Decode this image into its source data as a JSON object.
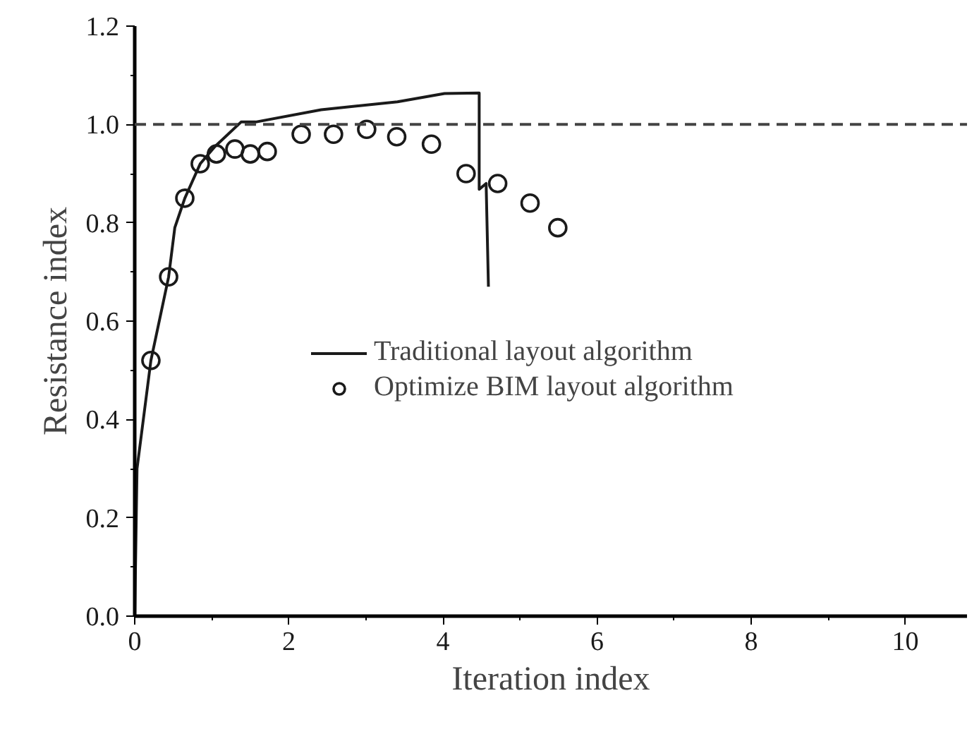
{
  "chart_data": {
    "type": "line",
    "xlabel": "Iteration index",
    "ylabel": "Resistance index",
    "xlim": [
      0,
      10.8
    ],
    "ylim": [
      0,
      1.2
    ],
    "xticks": [
      0,
      2,
      4,
      6,
      8,
      10
    ],
    "yticks": [
      {
        "value": 0,
        "label": "0.0"
      },
      0.2,
      0.4,
      0.6,
      0.8,
      {
        "value": 1,
        "label": "1.0"
      },
      1.2
    ],
    "series": [
      {
        "name": "Traditional layout algorithm",
        "color": "#1a1a1a",
        "marker": "none",
        "line_style": "solid",
        "x": [
          0,
          0.03,
          0.21,
          0.44,
          0.52,
          0.65,
          0.85,
          1.04,
          1.38,
          1.57,
          2.42,
          3.41,
          4.02,
          4.47,
          4.47,
          4.56,
          4.59
        ],
        "values": [
          0,
          0.3,
          0.52,
          0.69,
          0.79,
          0.85,
          0.92,
          0.955,
          1.005,
          1.005,
          1.03,
          1.046,
          1.063,
          1.064,
          0.868,
          0.88,
          0.67
        ]
      },
      {
        "name": "Optimize BIM layout algorithm",
        "type": "scatter",
        "color": "#1a1a1a",
        "marker": "circle",
        "x": [
          0.21,
          0.44,
          0.65,
          0.85,
          1.06,
          1.3,
          1.5,
          1.72,
          2.16,
          2.58,
          3.01,
          3.4,
          3.85,
          4.3,
          4.71,
          5.13,
          5.49
        ],
        "values": [
          0.52,
          0.69,
          0.85,
          0.92,
          0.94,
          0.95,
          0.94,
          0.945,
          0.98,
          0.98,
          0.99,
          0.975,
          0.96,
          0.9,
          0.88,
          0.84,
          0.79
        ]
      }
    ],
    "ref_lines": [
      {
        "axis": "y",
        "value": 1,
        "color": "#444444",
        "line_style": "dashed"
      }
    ],
    "legend": "right",
    "grid": false
  }
}
